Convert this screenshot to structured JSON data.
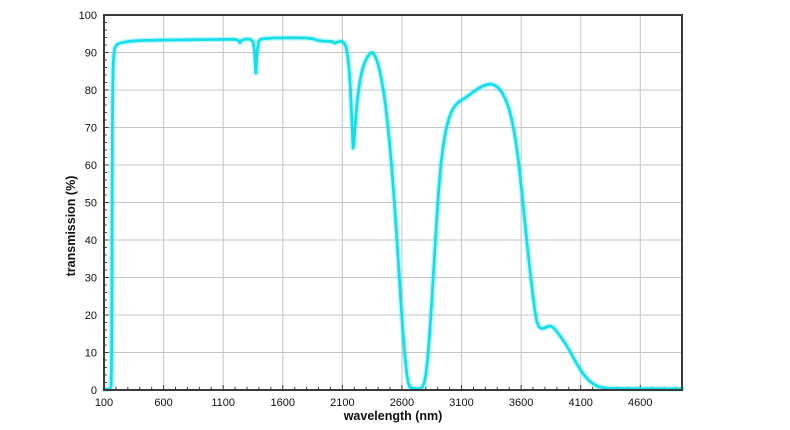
{
  "chart_data": {
    "type": "line",
    "title": "",
    "xlabel": "wavelength (nm)",
    "ylabel": "transmission (%)",
    "xlim": [
      100,
      4950
    ],
    "ylim": [
      0,
      100
    ],
    "x_ticks": [
      100,
      600,
      1100,
      1600,
      2100,
      2600,
      3100,
      3600,
      4100,
      4600
    ],
    "y_ticks": [
      0,
      10,
      20,
      30,
      40,
      50,
      60,
      70,
      80,
      90,
      100
    ],
    "x_minor_step": 100,
    "y_minor_step": 2,
    "grid": true,
    "legend": "none",
    "colors": {
      "line": "#12dfe9",
      "line_halo": "rgba(18,223,233,0.28)",
      "grid": "#c6c6c6",
      "frame": "#3a3a3a",
      "tick": "#3a3a3a",
      "text": "#111111",
      "background": "#ffffff"
    },
    "series": [
      {
        "name": "transmission",
        "points": [
          [
            108,
            0.2
          ],
          [
            150,
            0.3
          ],
          [
            160,
            1
          ],
          [
            163,
            6
          ],
          [
            165,
            18
          ],
          [
            167,
            38
          ],
          [
            169,
            58
          ],
          [
            171,
            72
          ],
          [
            174,
            82
          ],
          [
            178,
            87.5
          ],
          [
            184,
            90
          ],
          [
            192,
            91.3
          ],
          [
            205,
            92
          ],
          [
            225,
            92.4
          ],
          [
            260,
            92.7
          ],
          [
            320,
            93
          ],
          [
            420,
            93.2
          ],
          [
            550,
            93.3
          ],
          [
            700,
            93.35
          ],
          [
            850,
            93.4
          ],
          [
            1000,
            93.45
          ],
          [
            1120,
            93.5
          ],
          [
            1200,
            93.5
          ],
          [
            1228,
            93.2
          ],
          [
            1240,
            92.6
          ],
          [
            1252,
            93.2
          ],
          [
            1290,
            93.6
          ],
          [
            1330,
            93.5
          ],
          [
            1352,
            92.8
          ],
          [
            1362,
            90.5
          ],
          [
            1369,
            87
          ],
          [
            1374,
            84.5
          ],
          [
            1379,
            87
          ],
          [
            1386,
            90.5
          ],
          [
            1396,
            92.8
          ],
          [
            1412,
            93.5
          ],
          [
            1450,
            93.7
          ],
          [
            1520,
            93.85
          ],
          [
            1620,
            93.9
          ],
          [
            1720,
            93.9
          ],
          [
            1800,
            93.85
          ],
          [
            1860,
            93.6
          ],
          [
            1900,
            93.2
          ],
          [
            1940,
            93
          ],
          [
            1980,
            93
          ],
          [
            2015,
            92.9
          ],
          [
            2040,
            92.5
          ],
          [
            2062,
            92.8
          ],
          [
            2085,
            93
          ],
          [
            2102,
            92.9
          ],
          [
            2118,
            92.4
          ],
          [
            2132,
            91.3
          ],
          [
            2145,
            89
          ],
          [
            2157,
            85.5
          ],
          [
            2167,
            80.5
          ],
          [
            2176,
            74.5
          ],
          [
            2184,
            68.5
          ],
          [
            2190,
            64.5
          ],
          [
            2196,
            65.5
          ],
          [
            2205,
            69.5
          ],
          [
            2216,
            74
          ],
          [
            2230,
            78.5
          ],
          [
            2248,
            82.5
          ],
          [
            2268,
            85.5
          ],
          [
            2290,
            87.5
          ],
          [
            2312,
            88.9
          ],
          [
            2332,
            89.7
          ],
          [
            2350,
            90
          ],
          [
            2366,
            89.5
          ],
          [
            2382,
            88.5
          ],
          [
            2398,
            87
          ],
          [
            2414,
            85
          ],
          [
            2430,
            82.5
          ],
          [
            2446,
            79.5
          ],
          [
            2462,
            76
          ],
          [
            2478,
            71.5
          ],
          [
            2494,
            66.5
          ],
          [
            2510,
            61
          ],
          [
            2526,
            54.5
          ],
          [
            2542,
            47.5
          ],
          [
            2558,
            40
          ],
          [
            2574,
            32
          ],
          [
            2590,
            24
          ],
          [
            2606,
            16.5
          ],
          [
            2622,
            10
          ],
          [
            2638,
            5
          ],
          [
            2652,
            2
          ],
          [
            2666,
            0.8
          ],
          [
            2690,
            0.4
          ],
          [
            2720,
            0.3
          ],
          [
            2750,
            0.4
          ],
          [
            2772,
            0.8
          ],
          [
            2788,
            2
          ],
          [
            2802,
            4.5
          ],
          [
            2816,
            8.5
          ],
          [
            2830,
            14
          ],
          [
            2844,
            20.5
          ],
          [
            2858,
            27.5
          ],
          [
            2872,
            35
          ],
          [
            2886,
            42.5
          ],
          [
            2900,
            49.5
          ],
          [
            2914,
            55.5
          ],
          [
            2928,
            60.5
          ],
          [
            2944,
            64.5
          ],
          [
            2960,
            67.8
          ],
          [
            2978,
            70.5
          ],
          [
            2998,
            72.8
          ],
          [
            3020,
            74.5
          ],
          [
            3045,
            75.8
          ],
          [
            3072,
            76.7
          ],
          [
            3100,
            77.3
          ],
          [
            3135,
            78
          ],
          [
            3170,
            78.8
          ],
          [
            3205,
            79.6
          ],
          [
            3240,
            80.4
          ],
          [
            3275,
            81
          ],
          [
            3310,
            81.4
          ],
          [
            3345,
            81.6
          ],
          [
            3378,
            81.3
          ],
          [
            3408,
            80.6
          ],
          [
            3438,
            79.4
          ],
          [
            3468,
            77.6
          ],
          [
            3498,
            75
          ],
          [
            3526,
            71.5
          ],
          [
            3552,
            67
          ],
          [
            3578,
            61
          ],
          [
            3602,
            54
          ],
          [
            3626,
            46.5
          ],
          [
            3650,
            39
          ],
          [
            3672,
            32.5
          ],
          [
            3694,
            26.5
          ],
          [
            3714,
            21.5
          ],
          [
            3732,
            18.2
          ],
          [
            3750,
            16.8
          ],
          [
            3772,
            16.4
          ],
          [
            3795,
            16.5
          ],
          [
            3820,
            16.9
          ],
          [
            3845,
            17.1
          ],
          [
            3868,
            16.7
          ],
          [
            3892,
            15.9
          ],
          [
            3918,
            14.8
          ],
          [
            3945,
            13.6
          ],
          [
            3975,
            12.2
          ],
          [
            4008,
            10.4
          ],
          [
            4042,
            8.4
          ],
          [
            4076,
            6.5
          ],
          [
            4110,
            4.8
          ],
          [
            4144,
            3.4
          ],
          [
            4178,
            2.3
          ],
          [
            4212,
            1.5
          ],
          [
            4248,
            0.9
          ],
          [
            4290,
            0.6
          ],
          [
            4340,
            0.45
          ],
          [
            4420,
            0.4
          ],
          [
            4550,
            0.35
          ],
          [
            4700,
            0.35
          ],
          [
            4850,
            0.3
          ],
          [
            4950,
            0.3
          ]
        ]
      }
    ]
  }
}
